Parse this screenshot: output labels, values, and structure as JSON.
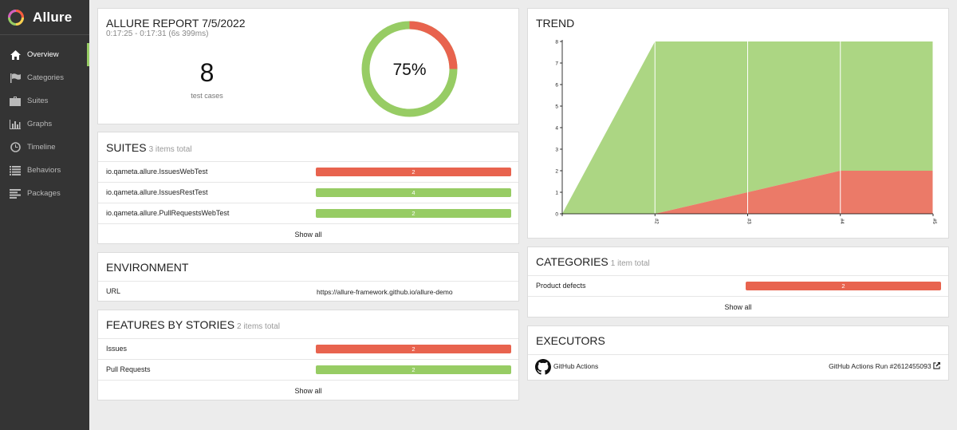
{
  "brand": {
    "name": "Allure"
  },
  "nav": [
    {
      "label": "Overview",
      "icon": "home-icon"
    },
    {
      "label": "Categories",
      "icon": "flag-icon"
    },
    {
      "label": "Suites",
      "icon": "briefcase-icon"
    },
    {
      "label": "Graphs",
      "icon": "bar-chart-icon"
    },
    {
      "label": "Timeline",
      "icon": "clock-icon"
    },
    {
      "label": "Behaviors",
      "icon": "list-icon"
    },
    {
      "label": "Packages",
      "icon": "align-left-icon"
    }
  ],
  "summary": {
    "title": "ALLURE REPORT 7/5/2022",
    "time_range": "0:17:25 - 0:17:31 (6s 399ms)",
    "test_count": "8",
    "test_count_label": "test cases",
    "percent": "75%",
    "passed_fraction": 0.75
  },
  "suites": {
    "title": "SUITES",
    "count": "3 items total",
    "rows": [
      {
        "label": "io.qameta.allure.IssuesWebTest",
        "value": "2",
        "status": "failed"
      },
      {
        "label": "io.qameta.allure.IssuesRestTest",
        "value": "4",
        "status": "passed"
      },
      {
        "label": "io.qameta.allure.PullRequestsWebTest",
        "value": "2",
        "status": "passed"
      }
    ],
    "show_all": "Show all"
  },
  "environment": {
    "title": "ENVIRONMENT",
    "key": "URL",
    "value": "https://allure-framework.github.io/allure-demo"
  },
  "features": {
    "title": "FEATURES BY STORIES",
    "count": "2 items total",
    "rows": [
      {
        "label": "Issues",
        "value": "2",
        "status": "failed"
      },
      {
        "label": "Pull Requests",
        "value": "2",
        "status": "passed"
      }
    ],
    "show_all": "Show all"
  },
  "trend": {
    "title": "TREND"
  },
  "categories": {
    "title": "CATEGORIES",
    "count": "1 item total",
    "rows": [
      {
        "label": "Product defects",
        "value": "2",
        "status": "failed"
      }
    ],
    "show_all": "Show all"
  },
  "executors": {
    "title": "EXECUTORS",
    "name": "GitHub Actions",
    "run": "GitHub Actions Run #2612455093"
  },
  "colors": {
    "passed": "#97cc64",
    "failed": "#e8634e",
    "sidebar": "#343434"
  },
  "chart_data": {
    "type": "area",
    "title": "TREND",
    "x": [
      "",
      "#2",
      "#3",
      "#4",
      "#5"
    ],
    "ylim": [
      0,
      8
    ],
    "yticks": [
      0,
      1,
      2,
      3,
      4,
      5,
      6,
      7,
      8
    ],
    "series": [
      {
        "status": "failed",
        "values": [
          0,
          0,
          1,
          2,
          2
        ]
      },
      {
        "status": "passed",
        "values": [
          0,
          8,
          7,
          6,
          6
        ]
      }
    ],
    "stacked": true
  }
}
